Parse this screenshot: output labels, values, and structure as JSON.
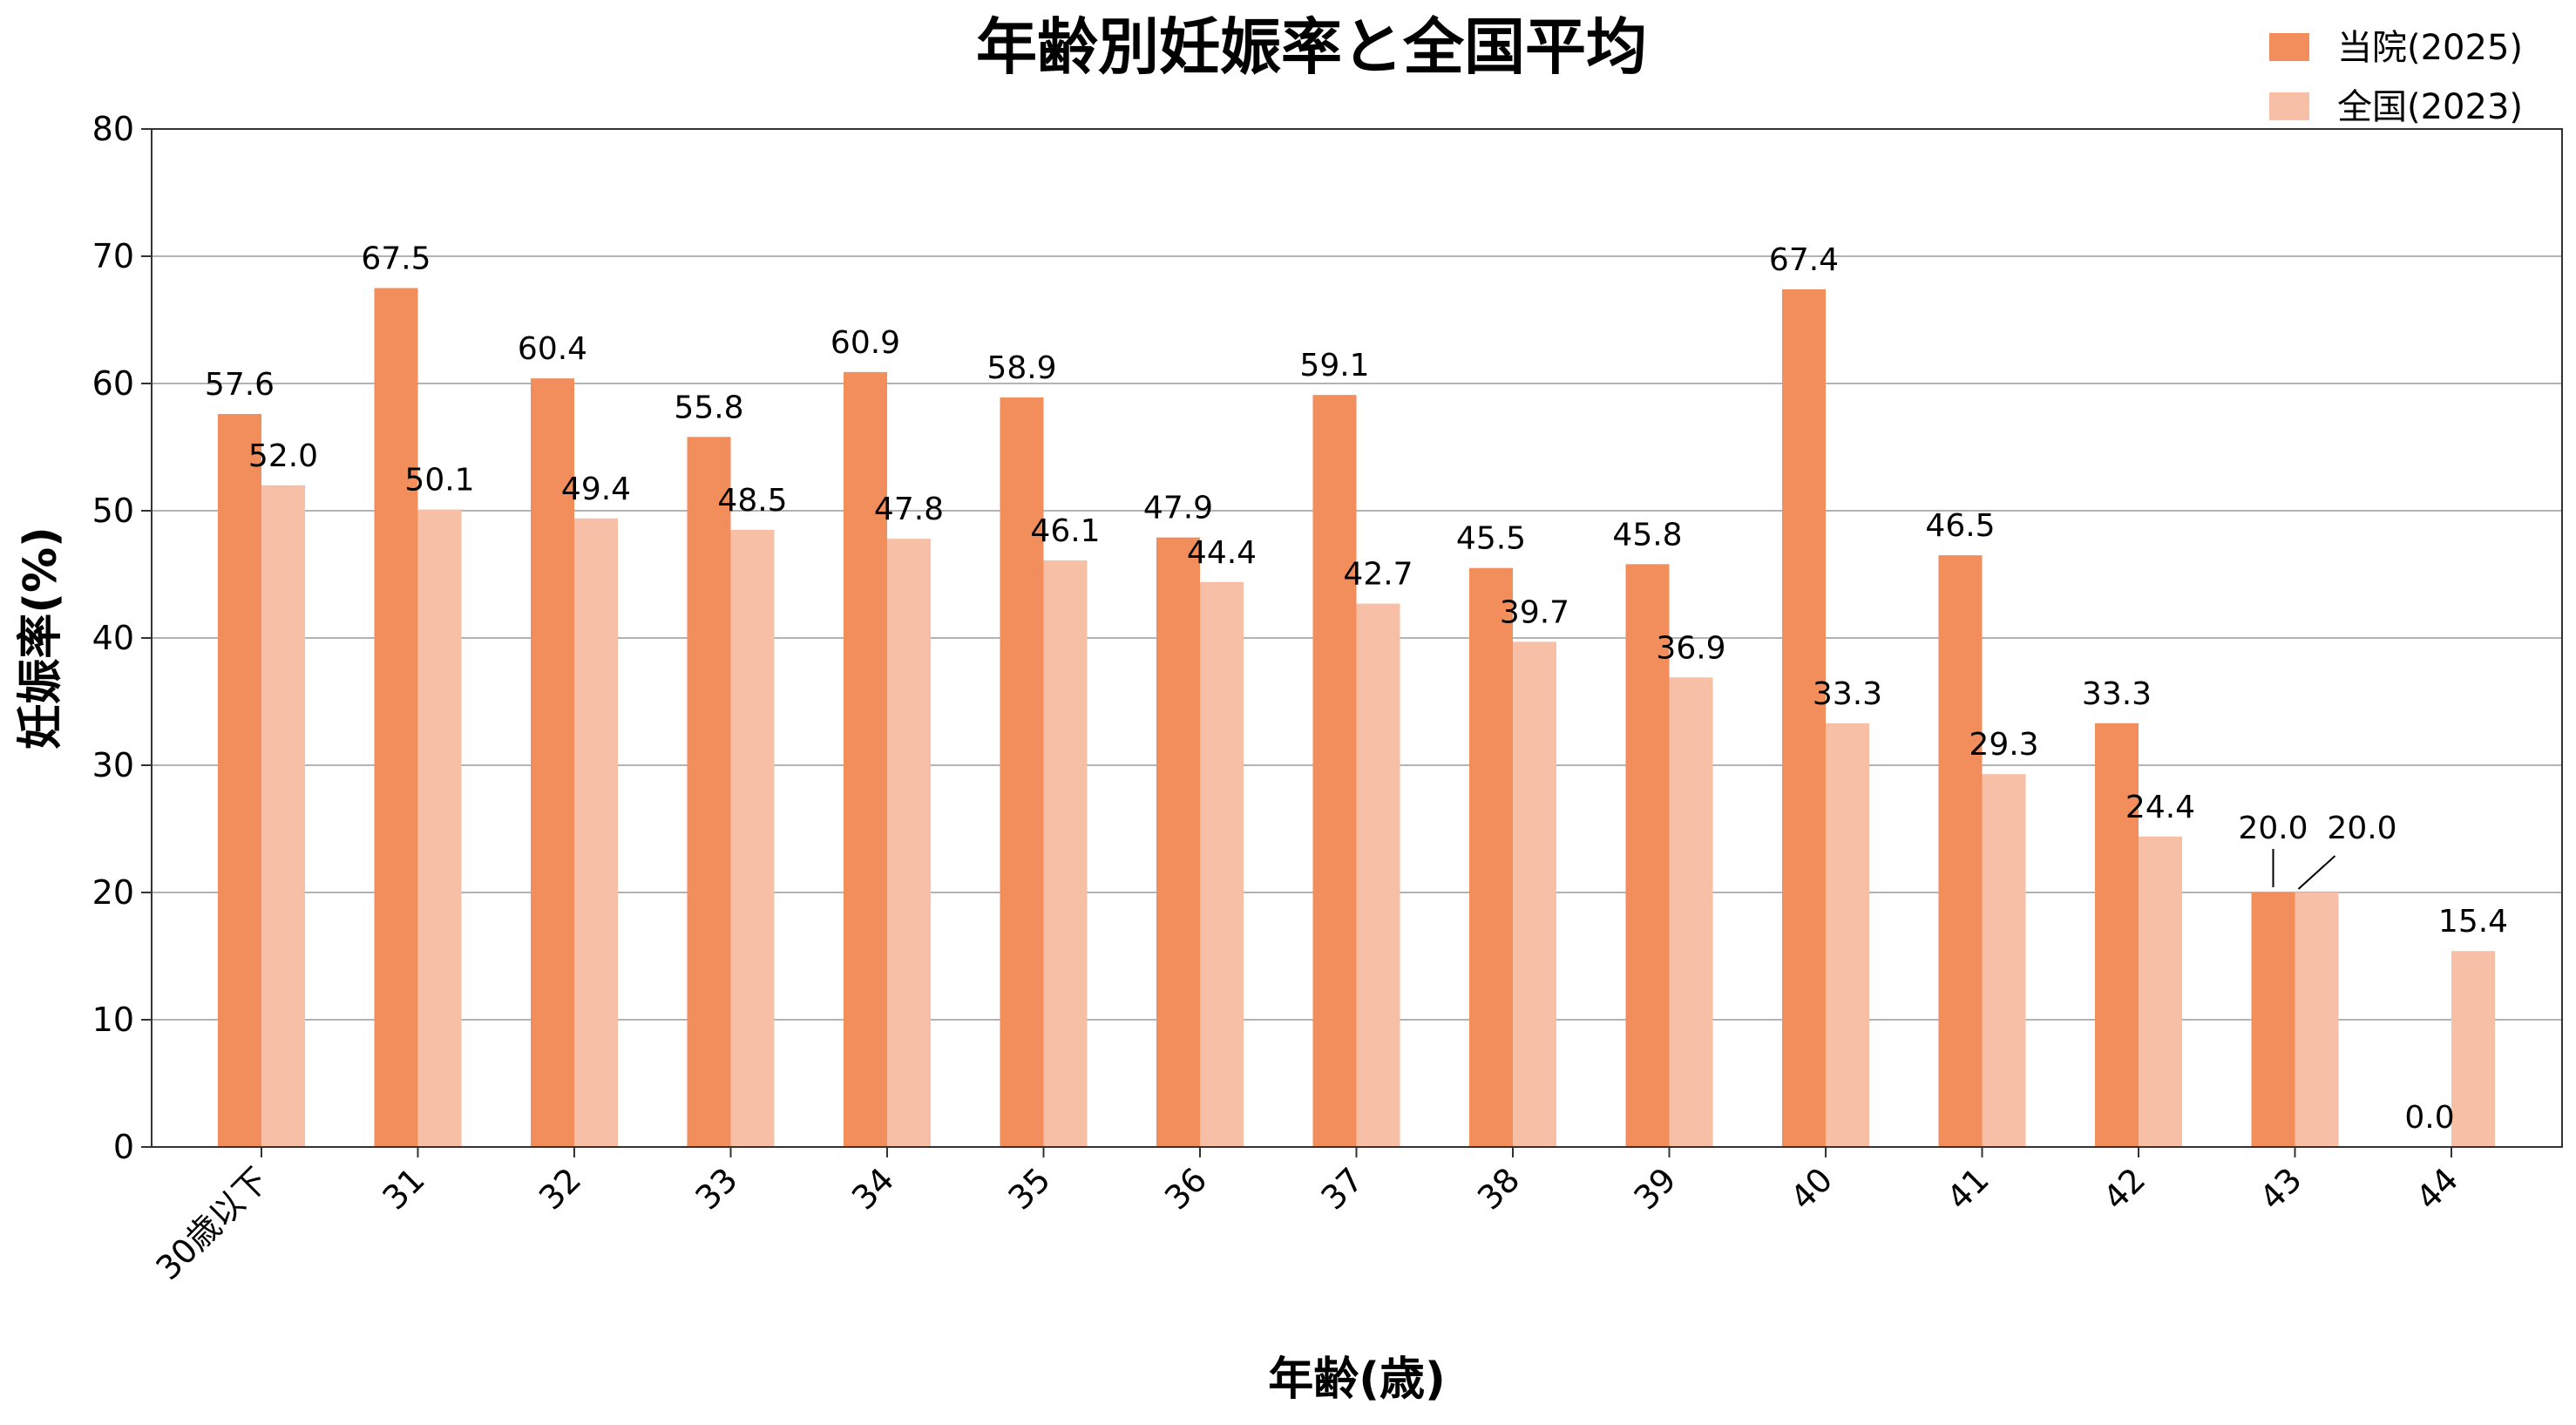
{
  "chart_data": {
    "type": "bar",
    "title": "年齢別妊娠率と全国平均",
    "xlabel": "年齢(歳)",
    "ylabel": "妊娠率(%)",
    "ylim": [
      0,
      80
    ],
    "yticks": [
      0,
      10,
      20,
      30,
      40,
      50,
      60,
      70,
      80
    ],
    "grid": true,
    "legend_position": "top-right",
    "categories": [
      "30歳以下",
      "31",
      "32",
      "33",
      "34",
      "35",
      "36",
      "37",
      "38",
      "39",
      "40",
      "41",
      "42",
      "43",
      "44"
    ],
    "series": [
      {
        "name": "当院(2025)",
        "color": "#f28e5c",
        "values": [
          57.6,
          67.5,
          60.4,
          55.8,
          60.9,
          58.9,
          47.9,
          59.1,
          45.5,
          45.8,
          67.4,
          46.5,
          33.3,
          20.0,
          0.0
        ],
        "labels": [
          "57.6",
          "67.5",
          "60.4",
          "55.8",
          "60.9",
          "58.9",
          "47.9",
          "59.1",
          "45.5",
          "45.8",
          "67.4",
          "46.5",
          "33.3",
          "20.0",
          "0.0"
        ]
      },
      {
        "name": "全国(2023)",
        "color": "#f7c0a6",
        "values": [
          52.0,
          50.1,
          49.4,
          48.5,
          47.8,
          46.1,
          44.4,
          42.7,
          39.7,
          36.9,
          33.3,
          29.3,
          24.4,
          20.0,
          15.4
        ],
        "labels": [
          "52.0",
          "50.1",
          "49.4",
          "48.5",
          "47.8",
          "46.1",
          "44.4",
          "42.7",
          "39.7",
          "36.9",
          "33.3",
          "29.3",
          "24.4",
          "20.0",
          "15.4"
        ]
      }
    ]
  }
}
